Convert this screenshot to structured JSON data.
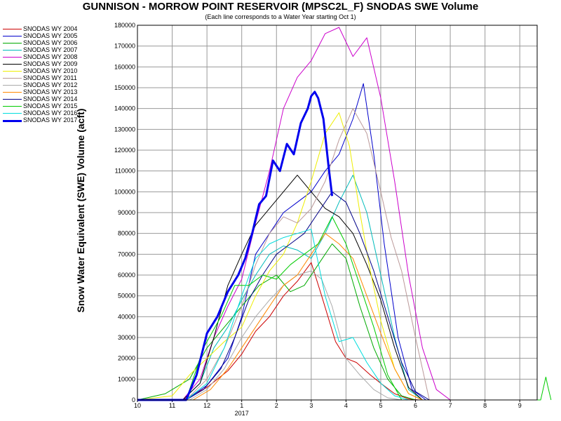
{
  "chart_data": {
    "type": "line",
    "title": "GUNNISON - MORROW POINT RESERVOIR (MPSC2L_F) SNODAS SWE Volume",
    "subtitle": "(Each line corresponds to a Water Year starting Oct 1)",
    "ylabel": "Snow Water Equivalent (SWE) Volume (acft)",
    "xlabel": "",
    "ylim": [
      0,
      180000
    ],
    "xlim": [
      0,
      11.5
    ],
    "x_unit": "months since Oct 1",
    "y_ticks": [
      0,
      10000,
      20000,
      30000,
      40000,
      50000,
      60000,
      70000,
      80000,
      90000,
      100000,
      110000,
      120000,
      130000,
      140000,
      150000,
      160000,
      170000,
      180000
    ],
    "x_ticks": [
      {
        "x": 0,
        "label": "10"
      },
      {
        "x": 1,
        "label": "11"
      },
      {
        "x": 2,
        "label": "12"
      },
      {
        "x": 3,
        "label": "1"
      },
      {
        "x": 4,
        "label": "2"
      },
      {
        "x": 5,
        "label": "3"
      },
      {
        "x": 6,
        "label": "4"
      },
      {
        "x": 7,
        "label": "5"
      },
      {
        "x": 8,
        "label": "6"
      },
      {
        "x": 9,
        "label": "7"
      },
      {
        "x": 10,
        "label": "8"
      },
      {
        "x": 11,
        "label": "9"
      }
    ],
    "x_sublabel": {
      "x": 3,
      "label": "2017"
    },
    "grid": true,
    "legend_position": "left-outside",
    "series": [
      {
        "name": "SNODAS WY 2004",
        "color": "#cc0000",
        "width": 1,
        "x": [
          0,
          1.3,
          2.0,
          2.6,
          3.0,
          3.4,
          3.8,
          4.2,
          4.6,
          5.0,
          5.3,
          5.7,
          6.0,
          6.3,
          6.7,
          7.0,
          7.4,
          7.8,
          8.1
        ],
        "y": [
          0,
          0,
          6000,
          14000,
          22000,
          33000,
          40000,
          50000,
          57000,
          66000,
          50000,
          28000,
          20000,
          18000,
          12000,
          8000,
          3000,
          500,
          0
        ]
      },
      {
        "name": "SNODAS WY 2005",
        "color": "#0000cc",
        "width": 1,
        "x": [
          0,
          1.4,
          2.0,
          2.6,
          3.0,
          3.4,
          3.8,
          4.2,
          4.6,
          5.0,
          5.4,
          5.8,
          6.2,
          6.5,
          6.8,
          7.1,
          7.5,
          7.9,
          8.3
        ],
        "y": [
          0,
          0,
          7000,
          20000,
          40000,
          70000,
          80000,
          90000,
          95000,
          100000,
          110000,
          118000,
          135000,
          152000,
          118000,
          75000,
          30000,
          5000,
          0
        ]
      },
      {
        "name": "SNODAS WY 2006",
        "color": "#00aa00",
        "width": 1,
        "x": [
          0,
          0.8,
          1.5,
          2.0,
          2.5,
          3.0,
          3.5,
          4.0,
          4.4,
          4.8,
          5.2,
          5.6,
          6.0,
          6.4,
          6.8,
          7.2,
          7.6,
          8.0
        ],
        "y": [
          0,
          3000,
          10000,
          25000,
          35000,
          45000,
          55000,
          60000,
          52000,
          55000,
          65000,
          75000,
          68000,
          45000,
          25000,
          10000,
          2000,
          0
        ]
      },
      {
        "name": "SNODAS WY 2007",
        "color": "#00bbbb",
        "width": 1,
        "x": [
          0,
          1.3,
          1.8,
          2.2,
          2.6,
          3.0,
          3.4,
          3.8,
          4.2,
          4.6,
          5.0,
          5.4,
          5.8,
          6.2,
          6.6,
          7.0,
          7.4,
          7.8,
          8.2
        ],
        "y": [
          0,
          0,
          8000,
          25000,
          35000,
          48000,
          60000,
          70000,
          74000,
          72000,
          68000,
          80000,
          95000,
          108000,
          90000,
          60000,
          30000,
          5000,
          0
        ]
      },
      {
        "name": "SNODAS WY 2008",
        "color": "#cc00cc",
        "width": 1,
        "x": [
          0,
          1.3,
          1.8,
          2.2,
          2.6,
          3.0,
          3.4,
          3.8,
          4.2,
          4.6,
          5.0,
          5.4,
          5.8,
          6.2,
          6.6,
          7.0,
          7.4,
          7.8,
          8.2,
          8.6,
          9.0
        ],
        "y": [
          0,
          0,
          10000,
          30000,
          45000,
          58000,
          85000,
          110000,
          140000,
          155000,
          163000,
          176000,
          179000,
          165000,
          174000,
          145000,
          105000,
          60000,
          25000,
          5000,
          0
        ]
      },
      {
        "name": "SNODAS WY 2009",
        "color": "#000000",
        "width": 1,
        "x": [
          0,
          1.3,
          1.8,
          2.2,
          2.6,
          3.0,
          3.4,
          3.8,
          4.2,
          4.6,
          5.0,
          5.4,
          5.8,
          6.2,
          6.6,
          7.0,
          7.4,
          7.8,
          8.2
        ],
        "y": [
          0,
          0,
          8000,
          30000,
          55000,
          70000,
          84000,
          92000,
          100000,
          108000,
          100000,
          92000,
          88000,
          80000,
          65000,
          48000,
          25000,
          6000,
          0
        ]
      },
      {
        "name": "SNODAS WY 2010",
        "color": "#eeee00",
        "width": 1,
        "x": [
          0,
          1.0,
          1.5,
          2.0,
          2.5,
          3.0,
          3.4,
          3.8,
          4.2,
          4.6,
          5.0,
          5.4,
          5.8,
          6.1,
          6.4,
          6.7,
          7.0,
          7.4,
          7.8,
          8.2
        ],
        "y": [
          0,
          2000,
          12000,
          20000,
          28000,
          35000,
          50000,
          62000,
          70000,
          85000,
          105000,
          128000,
          138000,
          122000,
          90000,
          62000,
          38000,
          15000,
          3000,
          0
        ]
      },
      {
        "name": "SNODAS WY 2011",
        "color": "#bb9999",
        "width": 1,
        "x": [
          0,
          1.4,
          2.0,
          2.5,
          3.0,
          3.4,
          3.8,
          4.2,
          4.6,
          5.0,
          5.4,
          5.8,
          6.2,
          6.6,
          7.0,
          7.3,
          7.6,
          8.0,
          8.4
        ],
        "y": [
          0,
          0,
          10000,
          25000,
          45000,
          65000,
          80000,
          88000,
          85000,
          92000,
          105000,
          125000,
          140000,
          128000,
          100000,
          78000,
          62000,
          30000,
          0
        ]
      },
      {
        "name": "SNODAS WY 2012",
        "color": "#aaaaaa",
        "width": 1,
        "x": [
          0,
          1.5,
          2.0,
          2.5,
          3.0,
          3.4,
          3.8,
          4.2,
          4.6,
          5.0,
          5.3,
          5.6,
          6.0,
          6.4,
          6.8,
          7.2,
          7.6
        ],
        "y": [
          0,
          0,
          5000,
          15000,
          30000,
          40000,
          48000,
          55000,
          60000,
          62000,
          58000,
          45000,
          20000,
          12000,
          5000,
          1000,
          0
        ]
      },
      {
        "name": "SNODAS WY 2013",
        "color": "#ff8800",
        "width": 1,
        "x": [
          0,
          1.6,
          2.1,
          2.6,
          3.0,
          3.4,
          3.8,
          4.2,
          4.6,
          5.0,
          5.4,
          5.8,
          6.2,
          6.6,
          7.0,
          7.4,
          7.8,
          8.2
        ],
        "y": [
          0,
          0,
          5000,
          15000,
          25000,
          35000,
          45000,
          55000,
          60000,
          70000,
          80000,
          75000,
          68000,
          50000,
          32000,
          15000,
          3000,
          0
        ]
      },
      {
        "name": "SNODAS WY 2014",
        "color": "#000088",
        "width": 1,
        "x": [
          0,
          1.4,
          1.9,
          2.4,
          2.8,
          3.2,
          3.6,
          4.0,
          4.4,
          4.8,
          5.2,
          5.6,
          6.0,
          6.4,
          6.8,
          7.2,
          7.6,
          8.0,
          8.4
        ],
        "y": [
          0,
          0,
          5000,
          15000,
          30000,
          48000,
          60000,
          70000,
          75000,
          80000,
          90000,
          100000,
          95000,
          80000,
          62000,
          40000,
          18000,
          4000,
          0
        ]
      },
      {
        "name": "SNODAS WY 2015",
        "color": "#00cc00",
        "width": 1,
        "x": [
          0,
          1.4,
          1.9,
          2.4,
          2.8,
          3.2,
          3.6,
          4.0,
          4.4,
          4.8,
          5.2,
          5.6,
          6.0,
          6.4,
          6.8,
          7.2,
          7.6,
          11.6,
          11.75,
          11.8,
          11.9
        ],
        "y": [
          0,
          0,
          25000,
          40000,
          55000,
          55000,
          60000,
          58000,
          65000,
          70000,
          75000,
          88000,
          75000,
          55000,
          35000,
          12000,
          0,
          0,
          11000,
          7000,
          0
        ]
      },
      {
        "name": "SNODAS WY 2016",
        "color": "#00dddd",
        "width": 1,
        "x": [
          0,
          1.4,
          2.0,
          2.5,
          3.0,
          3.4,
          3.8,
          4.2,
          4.6,
          5.0,
          5.4,
          5.8,
          6.2,
          6.6,
          7.0,
          7.4,
          7.8
        ],
        "y": [
          0,
          0,
          8000,
          25000,
          50000,
          68000,
          75000,
          78000,
          80000,
          82000,
          50000,
          28000,
          30000,
          18000,
          8000,
          2000,
          0
        ]
      },
      {
        "name": "SNODAS WY 2017",
        "color": "#0000ee",
        "width": 3,
        "x": [
          0,
          1.4,
          1.7,
          2.0,
          2.3,
          2.6,
          2.9,
          3.1,
          3.3,
          3.5,
          3.7,
          3.9,
          4.1,
          4.3,
          4.5,
          4.7,
          4.9,
          5.0,
          5.1,
          5.2,
          5.35,
          5.5,
          5.6
        ],
        "y": [
          0,
          0,
          12000,
          32000,
          40000,
          52000,
          60000,
          68000,
          80000,
          94000,
          98000,
          115000,
          110000,
          123000,
          118000,
          133000,
          140000,
          146000,
          148000,
          145000,
          135000,
          112000,
          98000
        ]
      }
    ]
  }
}
